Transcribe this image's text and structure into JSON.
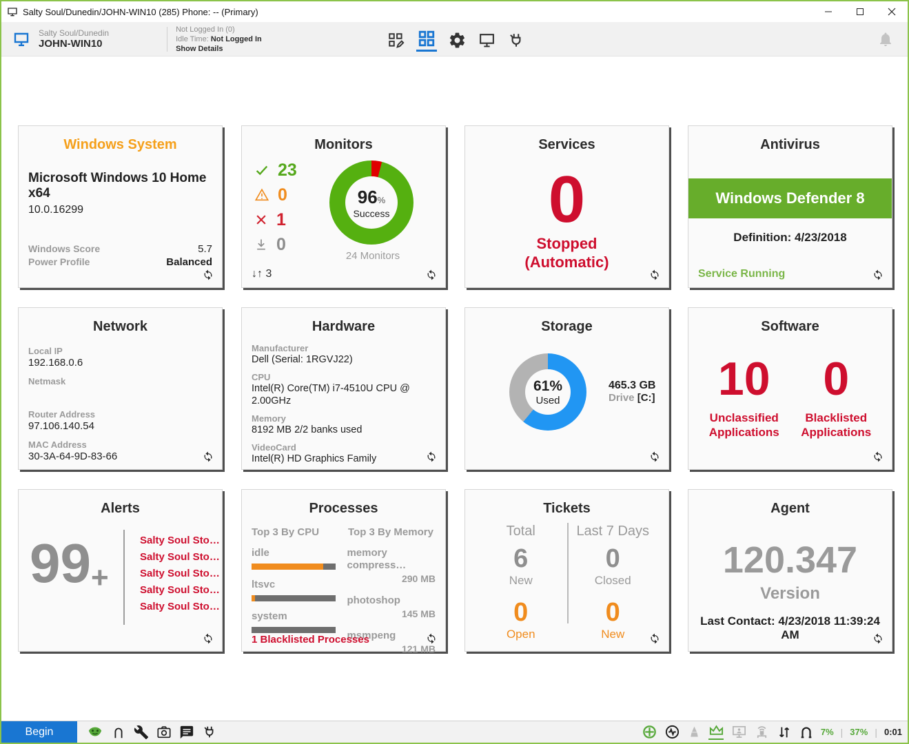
{
  "window": {
    "title": "Salty Soul/Dunedin/JOHN-WIN10 (285) Phone: -- (Primary)"
  },
  "header": {
    "location": "Salty Soul/Dunedin",
    "computer_name": "JOHN-WIN10",
    "logged_in_status": "Not Logged In (0)",
    "idle_time_label": "Idle Time:",
    "idle_time_value": "Not Logged In",
    "show_details_label": "Show Details"
  },
  "cards": {
    "windows_system": {
      "title": "Windows System",
      "os": "Microsoft Windows 10 Home x64",
      "version": "10.0.16299",
      "score_label": "Windows Score",
      "score_value": "5.7",
      "power_label": "Power Profile",
      "power_value": "Balanced"
    },
    "monitors": {
      "title": "Monitors",
      "success_count": "23",
      "warning_count": "0",
      "failed_count": "1",
      "other_count": "0",
      "percent": "96",
      "percent_unit": "%",
      "percent_label": "Success",
      "total_text": "24  Monitors",
      "footer_count": "3",
      "chart": {
        "type": "donut",
        "success": 96,
        "failed": 4,
        "success_color": "#55b010",
        "failed_color": "#e00000"
      }
    },
    "services": {
      "title": "Services",
      "count": "0",
      "status_line1": "Stopped",
      "status_line2": "(Automatic)"
    },
    "antivirus": {
      "title": "Antivirus",
      "product": "Windows Defender 8",
      "definition": "Definition: 4/23/2018",
      "status": "Service Running",
      "banner_color": "#67ad2b"
    },
    "network": {
      "title": "Network",
      "fields": [
        {
          "label": "Local IP",
          "value": "192.168.0.6"
        },
        {
          "label": "Netmask",
          "value": ""
        },
        {
          "label": "Router Address",
          "value": "97.106.140.54"
        },
        {
          "label": "MAC Address",
          "value": "30-3A-64-9D-83-66"
        }
      ]
    },
    "hardware": {
      "title": "Hardware",
      "fields": [
        {
          "label": "Manufacturer",
          "value": "Dell (Serial: 1RGVJ22)"
        },
        {
          "label": "CPU",
          "value": "Intel(R) Core(TM) i7-4510U CPU @ 2.00GHz"
        },
        {
          "label": "Memory",
          "value": "8192 MB 2/2 banks used"
        },
        {
          "label": "VideoCard",
          "value": "Intel(R) HD Graphics Family"
        }
      ]
    },
    "storage": {
      "title": "Storage",
      "percent": "61%",
      "used_label": "Used",
      "size": "465.3 GB",
      "drive_label": "Drive",
      "drive_name": "[C:]",
      "chart": {
        "type": "donut",
        "used": 61,
        "used_color": "#2196f3",
        "free_color": "#b3b3b3"
      }
    },
    "software": {
      "title": "Software",
      "unclassified_count": "10",
      "unclassified_label": "Unclassified Applications",
      "blacklisted_count": "0",
      "blacklisted_label": "Blacklisted Applications"
    },
    "alerts": {
      "title": "Alerts",
      "count": "99",
      "count_suffix": "+",
      "items": [
        "Salty Soul Sto…",
        "Salty Soul Sto…",
        "Salty Soul Sto…",
        "Salty Soul Sto…",
        "Salty Soul Sto…"
      ]
    },
    "processes": {
      "title": "Processes",
      "cpu_header": "Top 3 By CPU",
      "memory_header": "Top 3 By Memory",
      "cpu": [
        {
          "name": "idle",
          "percent": 85
        },
        {
          "name": "ltsvc",
          "percent": 4
        },
        {
          "name": "system",
          "percent": 0
        }
      ],
      "memory": [
        {
          "name": "memory compress…",
          "value": "290 MB"
        },
        {
          "name": "photoshop",
          "value": "145 MB"
        },
        {
          "name": "msmpeng",
          "value": "121 MB"
        }
      ],
      "footer": "1 Blacklisted Processes"
    },
    "tickets": {
      "title": "Tickets",
      "total_header": "Total",
      "last7_header": "Last 7 Days",
      "total_new_count": "6",
      "total_new_label": "New",
      "total_open_count": "0",
      "total_open_label": "Open",
      "last7_closed_count": "0",
      "last7_closed_label": "Closed",
      "last7_new_count": "0",
      "last7_new_label": "New"
    },
    "agent": {
      "title": "Agent",
      "version": "120.347",
      "version_label": "Version",
      "last_contact": "Last Contact: 4/23/2018 11:39:24 AM"
    }
  },
  "statusbar": {
    "begin_label": "Begin",
    "cpu_percent": "7%",
    "memory_percent": "37%",
    "timer": "0:01"
  },
  "colors": {
    "accent_blue": "#1976d2",
    "alert_red": "#ce0e2e",
    "warn_orange": "#f08c1e",
    "ok_green": "#55a81c",
    "title_orange": "#f5a01b"
  }
}
